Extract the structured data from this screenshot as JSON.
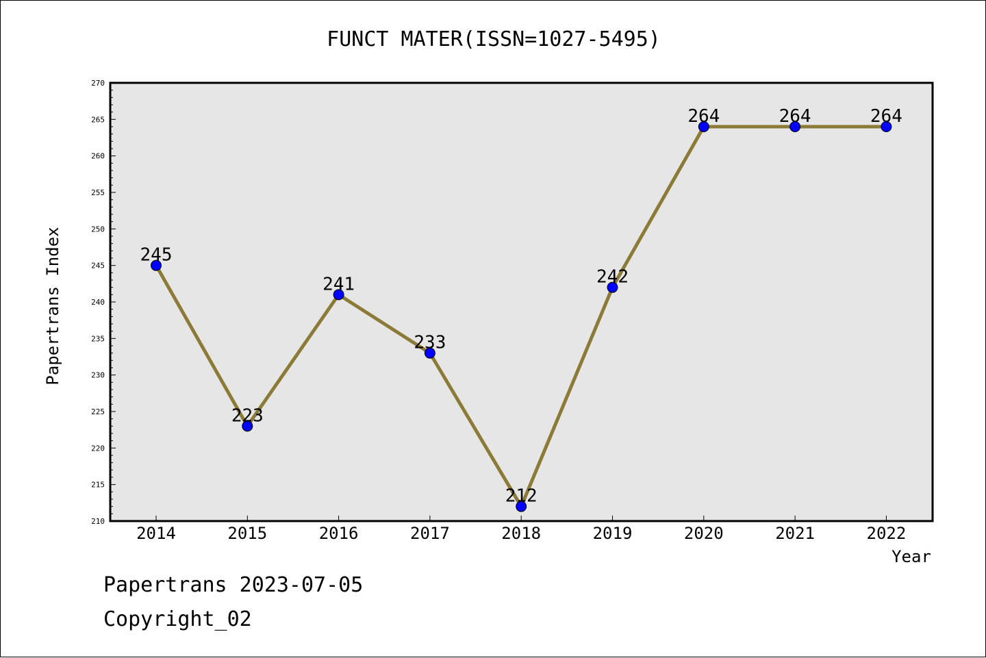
{
  "chart_data": {
    "type": "line",
    "title": "FUNCT MATER(ISSN=1027-5495)",
    "xlabel": "Year",
    "ylabel": "Papertrans Index",
    "categories": [
      "2014",
      "2015",
      "2016",
      "2017",
      "2018",
      "2019",
      "2020",
      "2021",
      "2022"
    ],
    "series": [
      {
        "values": [
          245,
          223,
          241,
          233,
          212,
          242,
          264,
          264,
          264
        ]
      }
    ],
    "ylim": [
      210,
      270
    ],
    "yticks": [
      210,
      215,
      220,
      225,
      230,
      235,
      240,
      245,
      250,
      255,
      260,
      265,
      270
    ],
    "grid": false,
    "legend": "none",
    "colors": {
      "line": "#8c7a37",
      "marker": "#0000ff",
      "plot_background": "#e6e6e6"
    }
  },
  "footer": {
    "line1": "Papertrans 2023-07-05",
    "line2": "Copyright_02"
  }
}
